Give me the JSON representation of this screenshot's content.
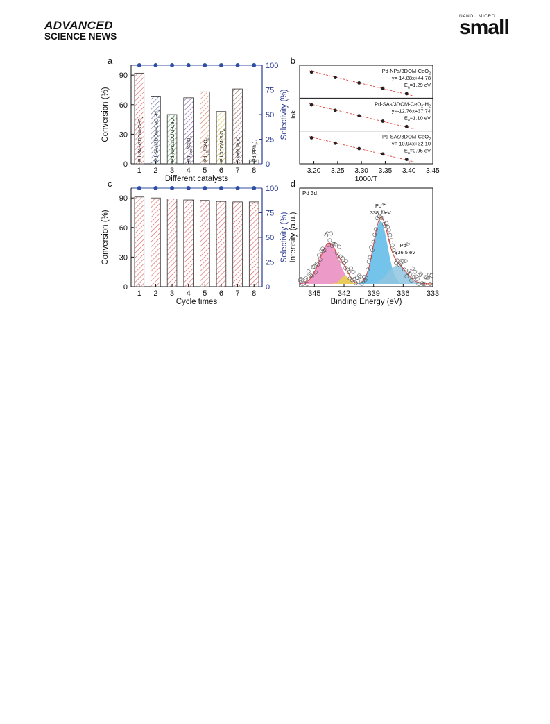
{
  "header": {
    "brand_top": "ADVANCED",
    "brand_bottom": "SCIENCE NEWS",
    "journal_small": "NANO · MICRO",
    "journal_name": "small"
  },
  "colors": {
    "axis_right": "#2b3a8f",
    "selectivity_marker": "#2e4fa3",
    "fit_line": "#e0403a"
  },
  "chart_data": [
    {
      "panel": "a",
      "type": "bar",
      "categories": [
        "1",
        "2",
        "3",
        "4",
        "5",
        "6",
        "7",
        "8"
      ],
      "bar_labels": [
        "Pd-SAs/3DOM-CeO2",
        "Pd-SAs/3DOM-CeO2-H2",
        "Pd-NPs/3DOM-CeO2",
        "Pd1.78/CeO2",
        "Pd1.0/CeO2",
        "Pd/3DOM-SiO2",
        "5 wt% Pd/C",
        "Pd(PPh3)4"
      ],
      "bar_colors": [
        "#e06060",
        "#6070b0",
        "#60b060",
        "#8060b0",
        "#e08060",
        "#d0c040",
        "#a06060",
        "#505050"
      ],
      "series": [
        {
          "name": "Conversion",
          "values": [
            92,
            68,
            50,
            67,
            73,
            53,
            76,
            4
          ]
        },
        {
          "name": "Selectivity",
          "values": [
            100,
            100,
            100,
            100,
            100,
            100,
            100,
            100
          ]
        }
      ],
      "xlabel": "Different catalysts",
      "ylabel": "Conversion (%)",
      "ylabel_right": "Selectivity (%)",
      "ylim": [
        0,
        100
      ],
      "yticks": [
        "0",
        "30",
        "60",
        "90"
      ],
      "ylim_right": [
        0,
        100
      ],
      "yticks_right": [
        "0",
        "25",
        "50",
        "75",
        "100"
      ]
    },
    {
      "panel": "b",
      "type": "scatter",
      "xlabel": "1000/T",
      "ylabel": "lnk",
      "xlim": [
        3.17,
        3.45
      ],
      "xticks": [
        "3.20",
        "3.25",
        "3.30",
        "3.35",
        "3.40",
        "3.45"
      ],
      "subpanels": [
        {
          "name": "Pd-NPs/3DOM-CeO2",
          "eq": "y=-14.88x+44.78",
          "ea": "Ea=1.29 eV",
          "x": [
            3.195,
            3.245,
            3.295,
            3.345,
            3.395
          ]
        },
        {
          "name": "Pd-SAs/3DOM-CeO2-H2",
          "eq": "y=-12.76x+37.74",
          "ea": "Ea=1.10 eV",
          "x": [
            3.195,
            3.245,
            3.295,
            3.345,
            3.395
          ]
        },
        {
          "name": "Pd-SAs/3DOM-CeO2",
          "eq": "y=-10.94x+32.10",
          "ea": "Ea=0.95 eV",
          "x": [
            3.195,
            3.245,
            3.295,
            3.345,
            3.395
          ]
        }
      ]
    },
    {
      "panel": "c",
      "type": "bar",
      "categories": [
        "1",
        "2",
        "3",
        "4",
        "5",
        "6",
        "7",
        "8"
      ],
      "series": [
        {
          "name": "Conversion",
          "values": [
            91,
            90,
            89,
            88,
            87.5,
            86.5,
            86,
            86
          ]
        },
        {
          "name": "Selectivity",
          "values": [
            100,
            100,
            100,
            100,
            100,
            100,
            100,
            100
          ]
        }
      ],
      "xlabel": "Cycle times",
      "ylabel": "Conversion (%)",
      "ylabel_right": "Selectivity (%)",
      "ylim": [
        0,
        100
      ],
      "yticks": [
        "0",
        "30",
        "60",
        "90"
      ],
      "ylim_right": [
        0,
        100
      ],
      "yticks_right": [
        "0",
        "25",
        "50",
        "75",
        "100"
      ]
    },
    {
      "panel": "d",
      "type": "scatter",
      "title": "Pd 3d",
      "xlabel": "Binding Energy (eV)",
      "ylabel": "Intensity (a.u.)",
      "xlim": [
        346.5,
        333
      ],
      "xticks": [
        "345",
        "342",
        "339",
        "336",
        "333"
      ],
      "annotations": [
        {
          "label": "Pd4+",
          "value": "338.2 eV"
        },
        {
          "label": "Pd2+",
          "value": "336.5 eV"
        }
      ],
      "peaks": [
        {
          "center": 343.5,
          "height": 0.62,
          "width": 0.95,
          "color": "#e98ac0"
        },
        {
          "center": 341.9,
          "height": 0.12,
          "width": 0.45,
          "color": "#e8d24a"
        },
        {
          "center": 338.3,
          "height": 0.95,
          "width": 0.72,
          "color": "#5ab8e6"
        },
        {
          "center": 336.6,
          "height": 0.28,
          "width": 0.95,
          "color": "#8fc6e0"
        }
      ]
    }
  ]
}
